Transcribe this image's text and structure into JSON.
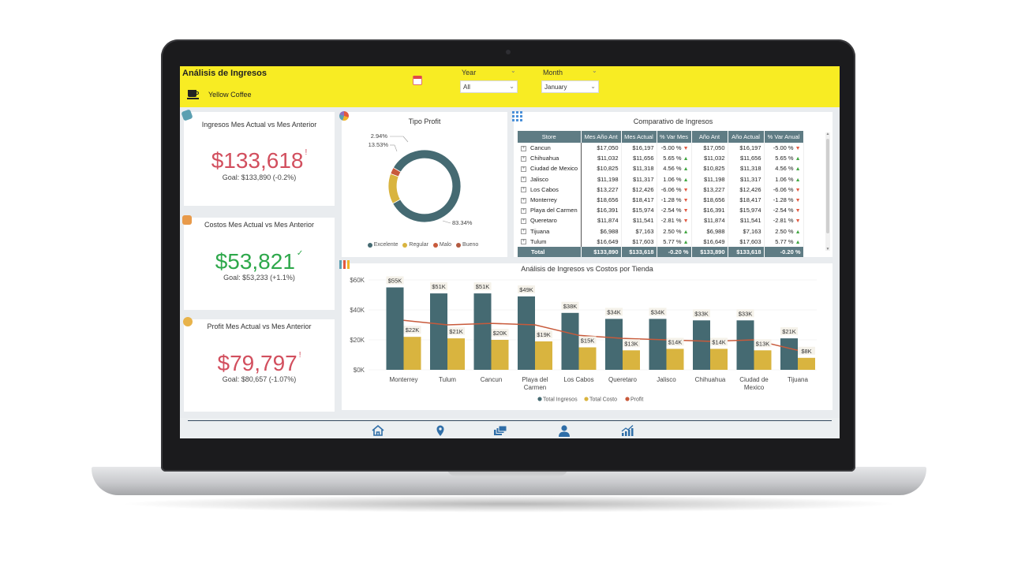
{
  "header": {
    "title": "Análisis de Ingresos",
    "brand_name": "Yellow Coffee",
    "year_label": "Year",
    "year_value": "All",
    "month_label": "Month",
    "month_value": "January"
  },
  "kpis": {
    "ingresos": {
      "title": "Ingresos Mes Actual vs Mes Anterior",
      "value": "$133,618",
      "mark": "!",
      "goal": "Goal: $133,890 (-0.2%)",
      "color": "#d24f5e"
    },
    "costos": {
      "title": "Costos Mes Actual vs Mes Anterior",
      "value": "$53,821",
      "mark": "✓",
      "goal": "Goal: $53,233 (+1.1%)",
      "color": "#2ea84b"
    },
    "profit": {
      "title": "Profit Mes Actual vs Mes Anterior",
      "value": "$79,797",
      "mark": "!",
      "goal": "Goal: $80,657 (-1.07%)",
      "color": "#d24f5e"
    }
  },
  "tipo_profit": {
    "title": "Tipo Profit",
    "label_small": "2.94%",
    "label_mid": "13.53%",
    "label_large": "83.34%",
    "legend": [
      "Excelente",
      "Regular",
      "Malo",
      "Bueno"
    ],
    "colors": [
      "#456a72",
      "#d9b43f",
      "#c85a3b",
      "#b35a40"
    ]
  },
  "comparativo": {
    "title": "Comparativo de Ingresos",
    "columns": [
      "Store",
      "Mes Año Ant",
      "Mes Actual",
      "% Var Mes",
      "Año Ant",
      "Año Actual",
      "% Var Anual"
    ],
    "rows": [
      {
        "store": "Cancun",
        "mes_ant": "$17,050",
        "mes_act": "$16,197",
        "var_mes": "-5.00 %",
        "dir_mes": "down",
        "ano_ant": "$17,050",
        "ano_act": "$16,197",
        "var_ano": "-5.00 %",
        "dir_ano": "down"
      },
      {
        "store": "Chihuahua",
        "mes_ant": "$11,032",
        "mes_act": "$11,656",
        "var_mes": "5.65 %",
        "dir_mes": "up",
        "ano_ant": "$11,032",
        "ano_act": "$11,656",
        "var_ano": "5.65 %",
        "dir_ano": "up"
      },
      {
        "store": "Ciudad de Mexico",
        "mes_ant": "$10,825",
        "mes_act": "$11,318",
        "var_mes": "4.56 %",
        "dir_mes": "up",
        "ano_ant": "$10,825",
        "ano_act": "$11,318",
        "var_ano": "4.56 %",
        "dir_ano": "up"
      },
      {
        "store": "Jalisco",
        "mes_ant": "$11,198",
        "mes_act": "$11,317",
        "var_mes": "1.06 %",
        "dir_mes": "up",
        "ano_ant": "$11,198",
        "ano_act": "$11,317",
        "var_ano": "1.06 %",
        "dir_ano": "up"
      },
      {
        "store": "Los Cabos",
        "mes_ant": "$13,227",
        "mes_act": "$12,426",
        "var_mes": "-6.06 %",
        "dir_mes": "down",
        "ano_ant": "$13,227",
        "ano_act": "$12,426",
        "var_ano": "-6.06 %",
        "dir_ano": "down"
      },
      {
        "store": "Monterrey",
        "mes_ant": "$18,656",
        "mes_act": "$18,417",
        "var_mes": "-1.28 %",
        "dir_mes": "down",
        "ano_ant": "$18,656",
        "ano_act": "$18,417",
        "var_ano": "-1.28 %",
        "dir_ano": "down"
      },
      {
        "store": "Playa del Carmen",
        "mes_ant": "$16,391",
        "mes_act": "$15,974",
        "var_mes": "-2.54 %",
        "dir_mes": "down",
        "ano_ant": "$16,391",
        "ano_act": "$15,974",
        "var_ano": "-2.54 %",
        "dir_ano": "down"
      },
      {
        "store": "Queretaro",
        "mes_ant": "$11,874",
        "mes_act": "$11,541",
        "var_mes": "-2.81 %",
        "dir_mes": "down",
        "ano_ant": "$11,874",
        "ano_act": "$11,541",
        "var_ano": "-2.81 %",
        "dir_ano": "down"
      },
      {
        "store": "Tijuana",
        "mes_ant": "$6,988",
        "mes_act": "$7,163",
        "var_mes": "2.50 %",
        "dir_mes": "up",
        "ano_ant": "$6,988",
        "ano_act": "$7,163",
        "var_ano": "2.50 %",
        "dir_ano": "up"
      },
      {
        "store": "Tulum",
        "mes_ant": "$16,649",
        "mes_act": "$17,603",
        "var_mes": "5.77 %",
        "dir_mes": "up",
        "ano_ant": "$16,649",
        "ano_act": "$17,603",
        "var_ano": "5.77 %",
        "dir_ano": "up"
      }
    ],
    "total": {
      "label": "Total",
      "mes_ant": "$133,890",
      "mes_act": "$133,618",
      "var_mes": "-0.20 %",
      "ano_ant": "$133,890",
      "ano_act": "$133,618",
      "var_ano": "-0.20 %"
    }
  },
  "chart_data": [
    {
      "type": "pie",
      "title": "Tipo Profit",
      "categories": [
        "Excelente",
        "Regular",
        "Malo"
      ],
      "values": [
        83.34,
        13.53,
        2.94
      ],
      "colors": [
        "#456a72",
        "#d9b43f",
        "#c85a3b"
      ]
    },
    {
      "type": "bar",
      "title": "Análisis de Ingresos vs Costos por Tienda",
      "categories": [
        "Monterrey",
        "Tulum",
        "Cancun",
        "Playa del Carmen",
        "Los Cabos",
        "Queretaro",
        "Jalisco",
        "Chihuahua",
        "Ciudad de Mexico",
        "Tijuana"
      ],
      "category_lines": [
        [
          "Monterrey"
        ],
        [
          "Tulum"
        ],
        [
          "Cancun"
        ],
        [
          "Playa del",
          "Carmen"
        ],
        [
          "Los Cabos"
        ],
        [
          "Queretaro"
        ],
        [
          "Jalisco"
        ],
        [
          "Chihuahua"
        ],
        [
          "Ciudad de",
          "Mexico"
        ],
        [
          "Tijuana"
        ]
      ],
      "series": [
        {
          "name": "Total Ingresos",
          "kind": "bar",
          "color": "#456a72",
          "values": [
            55,
            51,
            51,
            49,
            38,
            34,
            34,
            33,
            33,
            21
          ],
          "labels": [
            "$55K",
            "$51K",
            "$51K",
            "$49K",
            "$38K",
            "$34K",
            "$34K",
            "$33K",
            "$33K",
            "$21K"
          ]
        },
        {
          "name": "Total Costo",
          "kind": "bar",
          "color": "#d9b43f",
          "values": [
            22,
            21,
            20,
            19,
            15,
            13,
            14,
            14,
            13,
            8
          ],
          "labels": [
            "$22K",
            "$21K",
            "$20K",
            "$19K",
            "$15K",
            "$13K",
            "$14K",
            "$14K",
            "$13K",
            "$8K"
          ]
        },
        {
          "name": "Profit",
          "kind": "line",
          "color": "#c85a3b",
          "values": [
            33,
            30,
            31,
            30,
            23,
            21,
            20,
            19,
            20,
            13
          ]
        }
      ],
      "y_ticks": [
        "$0K",
        "$20K",
        "$40K",
        "$60K"
      ],
      "ylim": [
        0,
        60
      ]
    }
  ],
  "nav": [
    "home-icon",
    "location-pin-icon",
    "layers-icon",
    "user-icon",
    "trend-chart-icon"
  ]
}
